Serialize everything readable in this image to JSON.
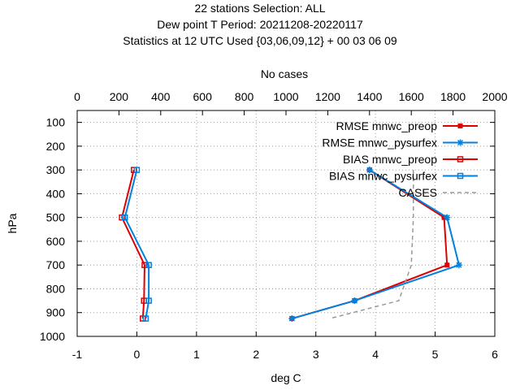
{
  "chart_data": {
    "type": "line",
    "title_lines": [
      "22 stations Selection: ALL",
      "Dew point T  Period: 20211208-20220117",
      "Statistics at 12 UTC  Used {03,06,09,12} + 00 03 06 09"
    ],
    "xlabel": "deg C",
    "ylabel": "hPa",
    "x2label": "No cases",
    "xlim": [
      -1,
      6
    ],
    "ylim": [
      1000,
      50
    ],
    "x2lim": [
      0,
      2000
    ],
    "xticks": [
      "-1",
      "0",
      "1",
      "2",
      "3",
      "4",
      "5",
      "6"
    ],
    "yticks": [
      "100",
      "200",
      "300",
      "400",
      "500",
      "600",
      "700",
      "800",
      "900",
      "1000"
    ],
    "x2ticks": [
      "0",
      "200",
      "400",
      "600",
      "800",
      "1000",
      "1200",
      "1400",
      "1600",
      "1800",
      "2000"
    ],
    "grid": true,
    "legend_position": "top-right",
    "series": [
      {
        "name": "RMSE mnwc_preop",
        "color": "#e00000",
        "marker": "filled-square",
        "dash": false,
        "axis": "x",
        "points": [
          [
            3.9,
            300
          ],
          [
            5.15,
            500
          ],
          [
            5.2,
            700
          ],
          [
            3.65,
            850
          ],
          [
            2.6,
            925
          ]
        ]
      },
      {
        "name": "RMSE mnwc_pysurfex",
        "color": "#0080e0",
        "marker": "star",
        "dash": false,
        "axis": "x",
        "points": [
          [
            3.9,
            300
          ],
          [
            5.2,
            500
          ],
          [
            5.4,
            700
          ],
          [
            3.65,
            850
          ],
          [
            2.6,
            925
          ]
        ]
      },
      {
        "name": "BIAS mnwc_preop",
        "color": "#e00000",
        "marker": "open-square",
        "dash": false,
        "axis": "x",
        "points": [
          [
            -0.05,
            300
          ],
          [
            -0.25,
            500
          ],
          [
            0.13,
            700
          ],
          [
            0.12,
            850
          ],
          [
            0.1,
            925
          ]
        ]
      },
      {
        "name": "BIAS mnwc_pysurfex",
        "color": "#0080e0",
        "marker": "open-square",
        "dash": false,
        "axis": "x",
        "points": [
          [
            0.0,
            300
          ],
          [
            -0.2,
            500
          ],
          [
            0.2,
            700
          ],
          [
            0.2,
            850
          ],
          [
            0.15,
            925
          ]
        ]
      },
      {
        "name": "CASES",
        "color": "#999999",
        "marker": "none",
        "dash": true,
        "axis": "x2",
        "points": [
          [
            1610,
            300
          ],
          [
            1610,
            500
          ],
          [
            1600,
            700
          ],
          [
            1540,
            850
          ],
          [
            1210,
            925
          ]
        ]
      }
    ]
  }
}
